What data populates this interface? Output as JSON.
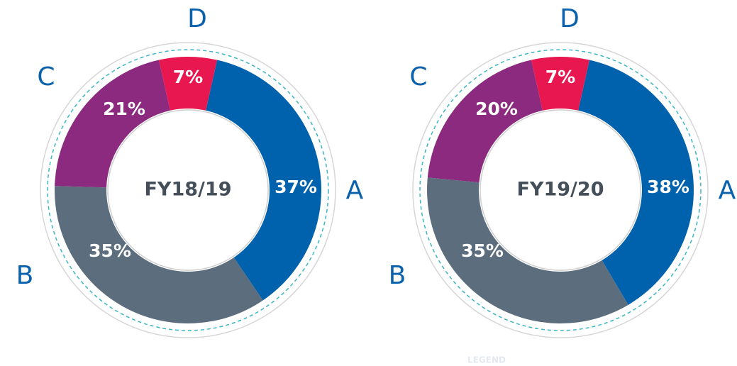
{
  "chart_data": [
    {
      "type": "pie",
      "title": "FY18/19",
      "categories": [
        "A",
        "B",
        "C",
        "D"
      ],
      "values": [
        37,
        35,
        21,
        7
      ],
      "value_labels": [
        "37%",
        "35%",
        "21%",
        "7%"
      ],
      "colors": [
        "#0062ad",
        "#5c6e7d",
        "#8b2a7e",
        "#e8174f"
      ]
    },
    {
      "type": "pie",
      "title": "FY19/20",
      "categories": [
        "A",
        "B",
        "C",
        "D"
      ],
      "values": [
        38,
        35,
        20,
        7
      ],
      "value_labels": [
        "38%",
        "35%",
        "20%",
        "7%"
      ],
      "colors": [
        "#0062ad",
        "#5c6e7d",
        "#8b2a7e",
        "#e8174f"
      ]
    }
  ],
  "legend_title": "LEGEND"
}
